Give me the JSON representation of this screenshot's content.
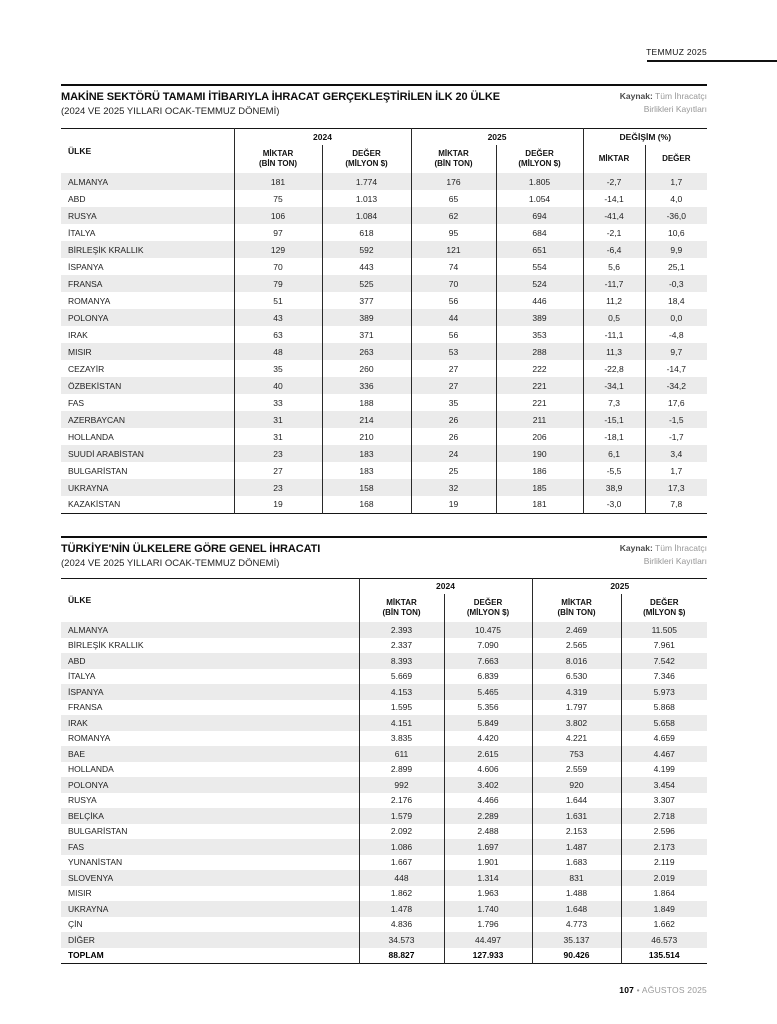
{
  "page_header": {
    "date_label": "TEMMUZ 2025"
  },
  "sections": [
    {
      "title": "MAKİNE SEKTÖRÜ TAMAMI İTİBARIYLA İHRACAT GERÇEKLEŞTİRİLEN İLK 20 ÜLKE",
      "subtitle": "(2024 VE 2025 YILLARI OCAK-TEMMUZ DÖNEMİ)",
      "source_label": "Kaynak:",
      "source_line1": "Tüm İhracatçı",
      "source_line2": "Birlikleri Kayıtları",
      "table": {
        "col_header": "ÜLKE",
        "groups": [
          {
            "label": "2024",
            "cols": [
              {
                "l1": "MİKTAR",
                "l2": "(BİN TON)"
              },
              {
                "l1": "DEĞER",
                "l2": "(MİLYON $)"
              }
            ]
          },
          {
            "label": "2025",
            "cols": [
              {
                "l1": "MİKTAR",
                "l2": "(BİN TON)"
              },
              {
                "l1": "DEĞER",
                "l2": "(MİLYON $)"
              }
            ]
          },
          {
            "label": "DEĞİŞİM (%)",
            "cols": [
              {
                "l1": "MİKTAR"
              },
              {
                "l1": "DEĞER"
              }
            ]
          }
        ],
        "bold_last_row": false,
        "rows": [
          [
            "ALMANYA",
            "181",
            "1.774",
            "176",
            "1.805",
            "-2,7",
            "1,7"
          ],
          [
            "ABD",
            "75",
            "1.013",
            "65",
            "1.054",
            "-14,1",
            "4,0"
          ],
          [
            "RUSYA",
            "106",
            "1.084",
            "62",
            "694",
            "-41,4",
            "-36,0"
          ],
          [
            "İTALYA",
            "97",
            "618",
            "95",
            "684",
            "-2,1",
            "10,6"
          ],
          [
            "BİRLEŞİK KRALLIK",
            "129",
            "592",
            "121",
            "651",
            "-6,4",
            "9,9"
          ],
          [
            "İSPANYA",
            "70",
            "443",
            "74",
            "554",
            "5,6",
            "25,1"
          ],
          [
            "FRANSA",
            "79",
            "525",
            "70",
            "524",
            "-11,7",
            "-0,3"
          ],
          [
            "ROMANYA",
            "51",
            "377",
            "56",
            "446",
            "11,2",
            "18,4"
          ],
          [
            "POLONYA",
            "43",
            "389",
            "44",
            "389",
            "0,5",
            "0,0"
          ],
          [
            "IRAK",
            "63",
            "371",
            "56",
            "353",
            "-11,1",
            "-4,8"
          ],
          [
            "MISIR",
            "48",
            "263",
            "53",
            "288",
            "11,3",
            "9,7"
          ],
          [
            "CEZAYİR",
            "35",
            "260",
            "27",
            "222",
            "-22,8",
            "-14,7"
          ],
          [
            "ÖZBEKİSTAN",
            "40",
            "336",
            "27",
            "221",
            "-34,1",
            "-34,2"
          ],
          [
            "FAS",
            "33",
            "188",
            "35",
            "221",
            "7,3",
            "17,6"
          ],
          [
            "AZERBAYCAN",
            "31",
            "214",
            "26",
            "211",
            "-15,1",
            "-1,5"
          ],
          [
            "HOLLANDA",
            "31",
            "210",
            "26",
            "206",
            "-18,1",
            "-1,7"
          ],
          [
            "SUUDİ ARABİSTAN",
            "23",
            "183",
            "24",
            "190",
            "6,1",
            "3,4"
          ],
          [
            "BULGARİSTAN",
            "27",
            "183",
            "25",
            "186",
            "-5,5",
            "1,7"
          ],
          [
            "UKRAYNA",
            "23",
            "158",
            "32",
            "185",
            "38,9",
            "17,3"
          ],
          [
            "KAZAKİSTAN",
            "19",
            "168",
            "19",
            "181",
            "-3,0",
            "7,8"
          ]
        ]
      }
    },
    {
      "title": "TÜRKİYE'NİN ÜLKELERE GÖRE GENEL İHRACATI",
      "subtitle": "(2024 VE 2025 YILLARI OCAK-TEMMUZ DÖNEMİ)",
      "source_label": "Kaynak:",
      "source_line1": "Tüm İhracatçı",
      "source_line2": "Birlikleri Kayıtları",
      "table": {
        "col_header": "ÜLKE",
        "groups": [
          {
            "label": "2024",
            "cols": [
              {
                "l1": "MİKTAR",
                "l2": "(BİN TON)"
              },
              {
                "l1": "DEĞER",
                "l2": "(MİLYON $)"
              }
            ]
          },
          {
            "label": "2025",
            "cols": [
              {
                "l1": "MİKTAR",
                "l2": "(BİN TON)"
              },
              {
                "l1": "DEĞER",
                "l2": "(MİLYON $)"
              }
            ]
          }
        ],
        "bold_last_row": true,
        "rows": [
          [
            "ALMANYA",
            "2.393",
            "10.475",
            "2.469",
            "11.505"
          ],
          [
            "BİRLEŞİK KRALLIK",
            "2.337",
            "7.090",
            "2.565",
            "7.961"
          ],
          [
            "ABD",
            "8.393",
            "7.663",
            "8.016",
            "7.542"
          ],
          [
            "İTALYA",
            "5.669",
            "6.839",
            "6.530",
            "7.346"
          ],
          [
            "İSPANYA",
            "4.153",
            "5.465",
            "4.319",
            "5.973"
          ],
          [
            "FRANSA",
            "1.595",
            "5.356",
            "1.797",
            "5.868"
          ],
          [
            "IRAK",
            "4.151",
            "5.849",
            "3.802",
            "5.658"
          ],
          [
            "ROMANYA",
            "3.835",
            "4.420",
            "4.221",
            "4.659"
          ],
          [
            "BAE",
            "611",
            "2.615",
            "753",
            "4.467"
          ],
          [
            "HOLLANDA",
            "2.899",
            "4.606",
            "2.559",
            "4.199"
          ],
          [
            "POLONYA",
            "992",
            "3.402",
            "920",
            "3.454"
          ],
          [
            "RUSYA",
            "2.176",
            "4.466",
            "1.644",
            "3.307"
          ],
          [
            "BELÇİKA",
            "1.579",
            "2.289",
            "1.631",
            "2.718"
          ],
          [
            "BULGARİSTAN",
            "2.092",
            "2.488",
            "2.153",
            "2.596"
          ],
          [
            "FAS",
            "1.086",
            "1.697",
            "1.487",
            "2.173"
          ],
          [
            "YUNANİSTAN",
            "1.667",
            "1.901",
            "1.683",
            "2.119"
          ],
          [
            "SLOVENYA",
            "448",
            "1.314",
            "831",
            "2.019"
          ],
          [
            "MISIR",
            "1.862",
            "1.963",
            "1.488",
            "1.864"
          ],
          [
            "UKRAYNA",
            "1.478",
            "1.740",
            "1.648",
            "1.849"
          ],
          [
            "ÇİN",
            "4.836",
            "1.796",
            "4.773",
            "1.662"
          ],
          [
            "DİĞER",
            "34.573",
            "44.497",
            "35.137",
            "46.573"
          ],
          [
            "TOPLAM",
            "88.827",
            "127.933",
            "90.426",
            "135.514"
          ]
        ]
      }
    }
  ],
  "footer": {
    "page_number": "107",
    "separator": "•",
    "issue": "AĞUSTOS 2025"
  },
  "colors": {
    "stripe": "#ebebeb",
    "rule": "#111111",
    "muted": "#979797"
  }
}
